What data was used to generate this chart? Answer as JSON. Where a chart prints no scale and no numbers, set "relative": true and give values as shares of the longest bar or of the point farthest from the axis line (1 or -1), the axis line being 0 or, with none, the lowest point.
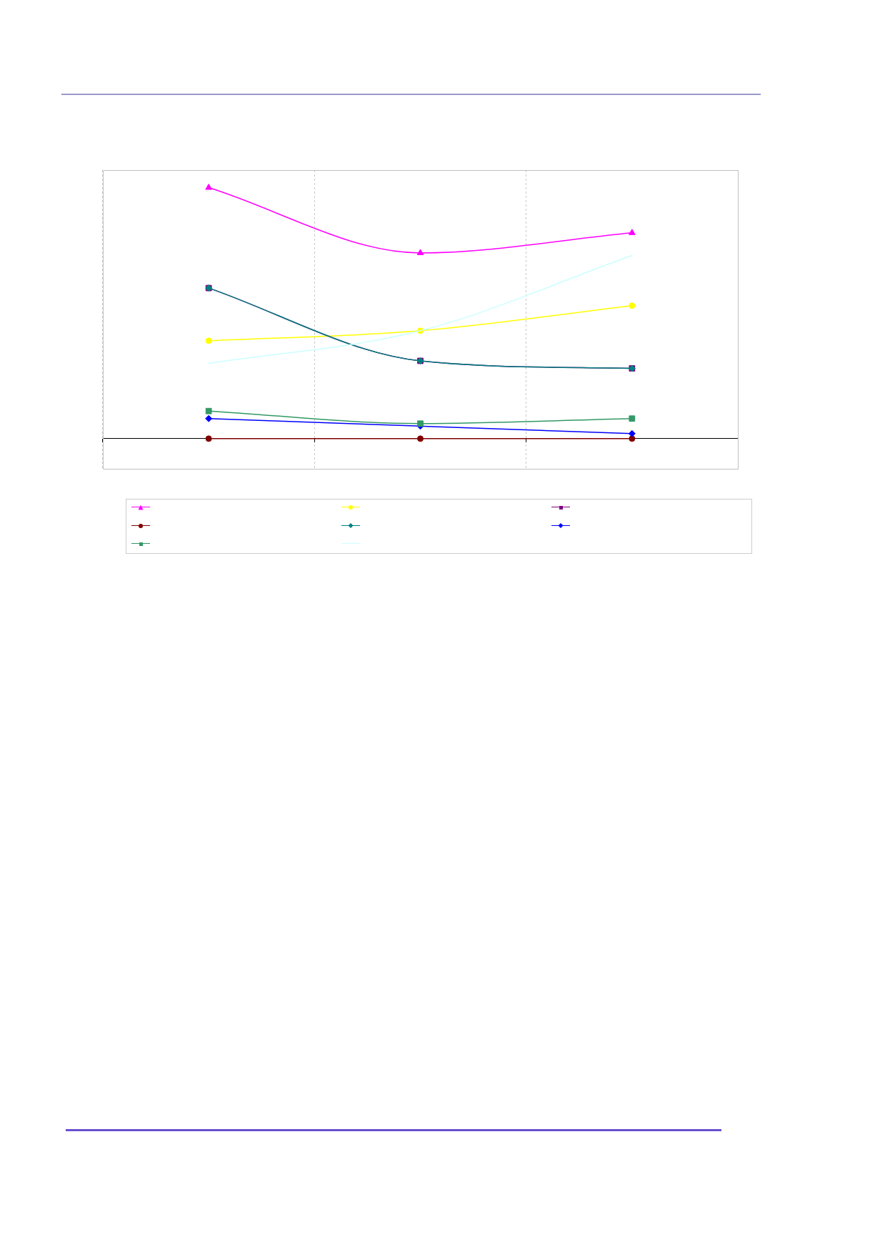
{
  "chart_data": {
    "type": "line",
    "relative": true,
    "categories": [
      null,
      null,
      null
    ],
    "grid": "x",
    "series": [
      {
        "color": "#ff00ff",
        "marker": "triangle",
        "values": [
          1,
          0.74,
          0.82
        ]
      },
      {
        "color": "#ffff00",
        "marker": "circle",
        "values": [
          0.39,
          0.43,
          0.53
        ]
      },
      {
        "color": "#800080",
        "marker": "square",
        "values": [
          0.6,
          0.31,
          0.28
        ]
      },
      {
        "color": "#800000",
        "marker": "circle",
        "values": [
          0,
          0,
          0
        ]
      },
      {
        "color": "#008080",
        "marker": "diamond",
        "values": [
          0.6,
          0.31,
          0.28
        ]
      },
      {
        "color": "#0000ff",
        "marker": "diamond",
        "values": [
          0.08,
          0.05,
          0.02
        ]
      },
      {
        "color": "#339966",
        "marker": "square",
        "values": [
          0.11,
          0.06,
          0.08
        ]
      },
      {
        "color": "#ccffff",
        "marker": "none",
        "values": [
          0.3,
          0.43,
          0.73
        ]
      }
    ]
  }
}
